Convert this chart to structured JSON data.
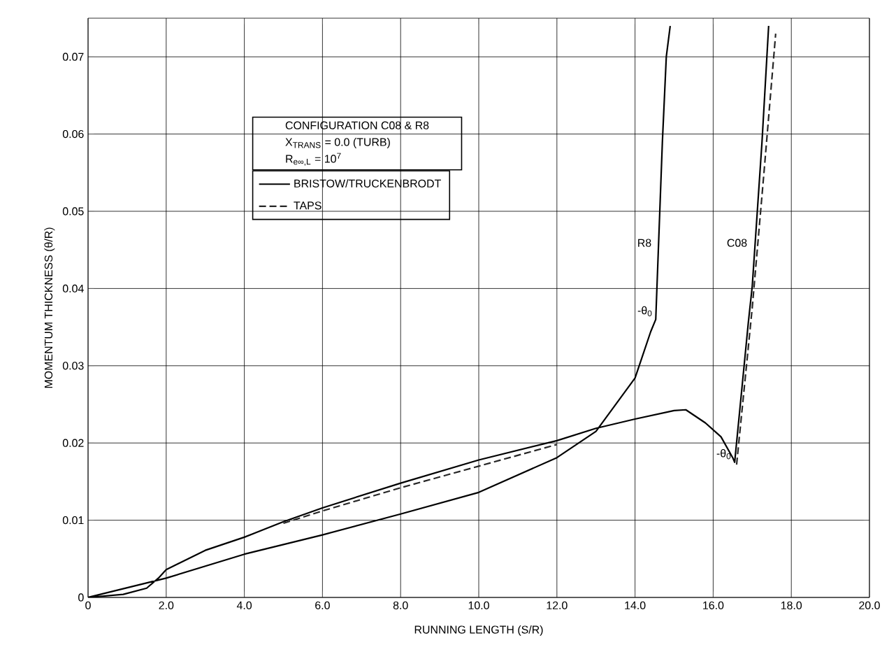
{
  "chart_data": {
    "type": "line",
    "xlabel": "RUNNING LENGTH (S/R)",
    "ylabel": "MOMENTUM THICKNESS (θ/R)",
    "legend_title": "CONFIGURATION C08 & R8",
    "xlim": [
      0,
      20
    ],
    "ylim": [
      0,
      0.075
    ],
    "xticks": [
      0,
      {
        "value": 2,
        "label": "2.0"
      },
      {
        "value": 4,
        "label": "4.0"
      },
      {
        "value": 6,
        "label": "6.0"
      },
      {
        "value": 8,
        "label": "8.0"
      },
      {
        "value": 10,
        "label": "10.0"
      },
      {
        "value": 12,
        "label": "12.0"
      },
      {
        "value": 14,
        "label": "14.0"
      },
      {
        "value": 16,
        "label": "16.0"
      },
      {
        "value": 18,
        "label": "18.0"
      },
      {
        "value": 20,
        "label": "20.0"
      }
    ],
    "yticks": [
      0,
      0.01,
      0.02,
      0.03,
      0.04,
      0.05,
      0.06,
      0.07
    ],
    "grid": true,
    "legend": "top left",
    "series": [
      {
        "name": "BRISTOW/TRUCKENBRODT",
        "color": "#000000",
        "line_style": "solid",
        "x": [
          0,
          2,
          4,
          6,
          8,
          10,
          12,
          13,
          14,
          14.4,
          14.53,
          14.7,
          14.8,
          14.9,
          null,
          0,
          0.9,
          1.5,
          1.8,
          2,
          3,
          4,
          5,
          6,
          8,
          10,
          12,
          13,
          14,
          15,
          15.3,
          15.8,
          16.2,
          16.5,
          16.55,
          16.9,
          17.0,
          17.25,
          17.42
        ],
        "values": [
          0,
          0.0025,
          0.0056,
          0.0081,
          0.0108,
          0.0136,
          0.0181,
          0.0215,
          0.0284,
          0.0344,
          0.036,
          0.059,
          0.07,
          0.074,
          null,
          0,
          0.0004,
          0.0012,
          0.0025,
          0.0036,
          0.0061,
          0.0078,
          0.0098,
          0.0116,
          0.0148,
          0.0178,
          0.0203,
          0.0219,
          0.0231,
          0.0242,
          0.0243,
          0.0226,
          0.0208,
          0.0181,
          0.0175,
          0.0356,
          0.0403,
          0.059,
          0.074
        ]
      },
      {
        "name": "TAPS",
        "color": "#262626",
        "line_style": "dashed",
        "x": [
          5,
          6,
          8,
          10,
          12,
          null,
          16.6,
          17.0,
          17.3,
          17.6
        ],
        "values": [
          0.0096,
          0.0112,
          0.0142,
          0.017,
          0.0198,
          null,
          0.0172,
          0.0375,
          0.055,
          0.073
        ]
      }
    ],
    "annotations": [
      "X$_{TRANS}$ = 0.0 (TURB)",
      "R$_{e∞,L}$ = 10$^{7}$",
      {
        "text": "R8",
        "x": 14.5,
        "y": 0.045
      },
      {
        "text": "C08",
        "x": 16.95,
        "y": 0.045
      },
      {
        "text": "-θ$_{0}$",
        "x": 14.53,
        "y": 0.036
      },
      {
        "text": "-θ$_{0}$",
        "x": 16.55,
        "y": 0.0175
      }
    ]
  }
}
